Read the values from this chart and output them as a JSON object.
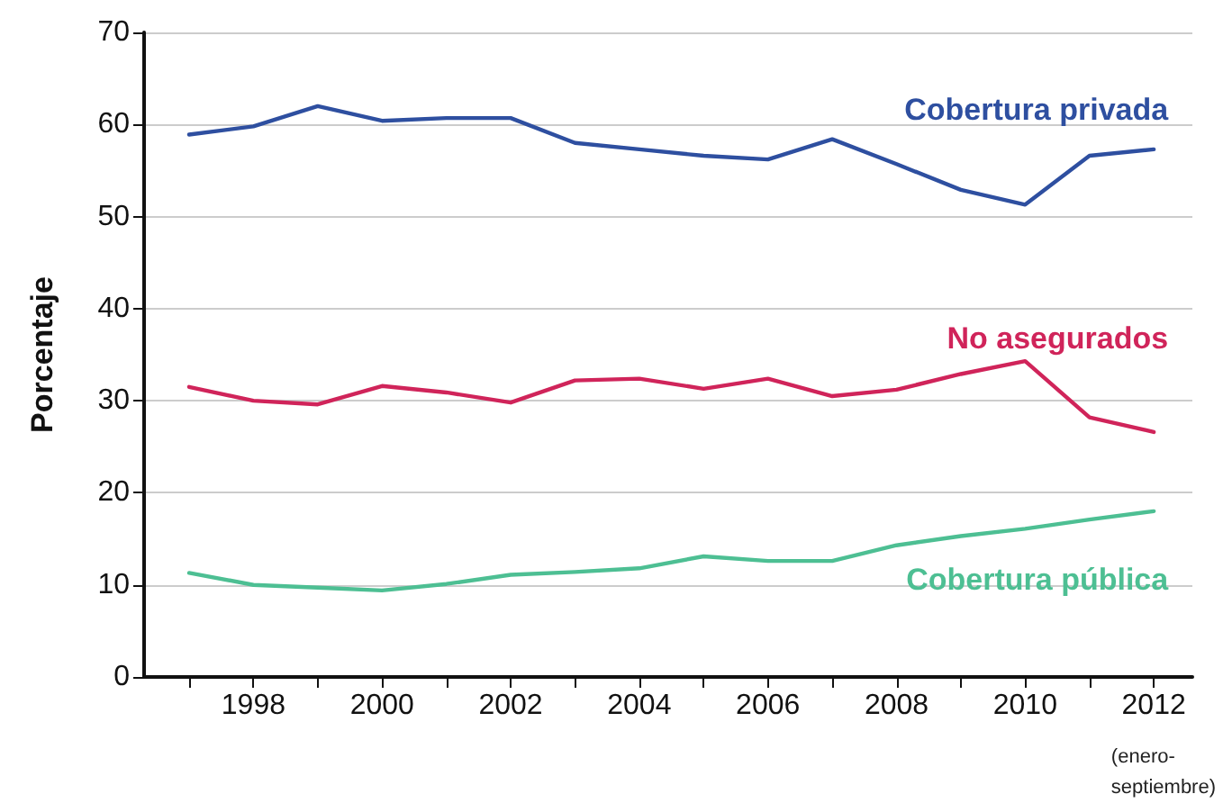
{
  "chart_data": {
    "type": "line",
    "ylabel": "Porcentaje",
    "x": [
      1997,
      1998,
      1999,
      2000,
      2001,
      2002,
      2003,
      2004,
      2005,
      2006,
      2007,
      2008,
      2009,
      2010,
      2011,
      2012
    ],
    "series": [
      {
        "name": "Cobertura privada",
        "color": "#2e4fa0",
        "values": [
          58.9,
          59.8,
          62.0,
          60.4,
          60.7,
          60.7,
          58.0,
          57.3,
          56.6,
          56.2,
          58.4,
          55.7,
          52.9,
          51.3,
          56.6,
          57.3
        ]
      },
      {
        "name": "No asegurados",
        "color": "#d0245a",
        "values": [
          31.5,
          30.0,
          29.6,
          31.6,
          30.9,
          29.8,
          32.2,
          32.4,
          31.3,
          32.4,
          30.5,
          31.2,
          32.9,
          34.3,
          28.2,
          26.6
        ]
      },
      {
        "name": "Cobertura pública",
        "color": "#4dbf93",
        "values": [
          11.3,
          10.0,
          9.7,
          9.4,
          10.1,
          11.1,
          11.4,
          11.8,
          13.1,
          12.6,
          12.6,
          14.3,
          15.3,
          16.1,
          17.1,
          18.0
        ]
      }
    ],
    "xlim": [
      1996.3,
      2012.6
    ],
    "xticks": [
      {
        "value": 1997,
        "label": null
      },
      1998,
      {
        "value": 1999,
        "label": null
      },
      2000,
      {
        "value": 2001,
        "label": null
      },
      2002,
      {
        "value": 2003,
        "label": null
      },
      2004,
      {
        "value": 2005,
        "label": null
      },
      2006,
      {
        "value": 2007,
        "label": null
      },
      2008,
      {
        "value": 2009,
        "label": null
      },
      2010,
      {
        "value": 2011,
        "label": null
      },
      2012
    ],
    "ylim": [
      0,
      70
    ],
    "yticks": [
      0,
      10,
      20,
      30,
      40,
      50,
      60,
      70
    ],
    "grid": "y",
    "legend": false,
    "marker": "none",
    "line_style": "solid",
    "annotations": [
      "(enero-\nseptiembre)"
    ]
  }
}
